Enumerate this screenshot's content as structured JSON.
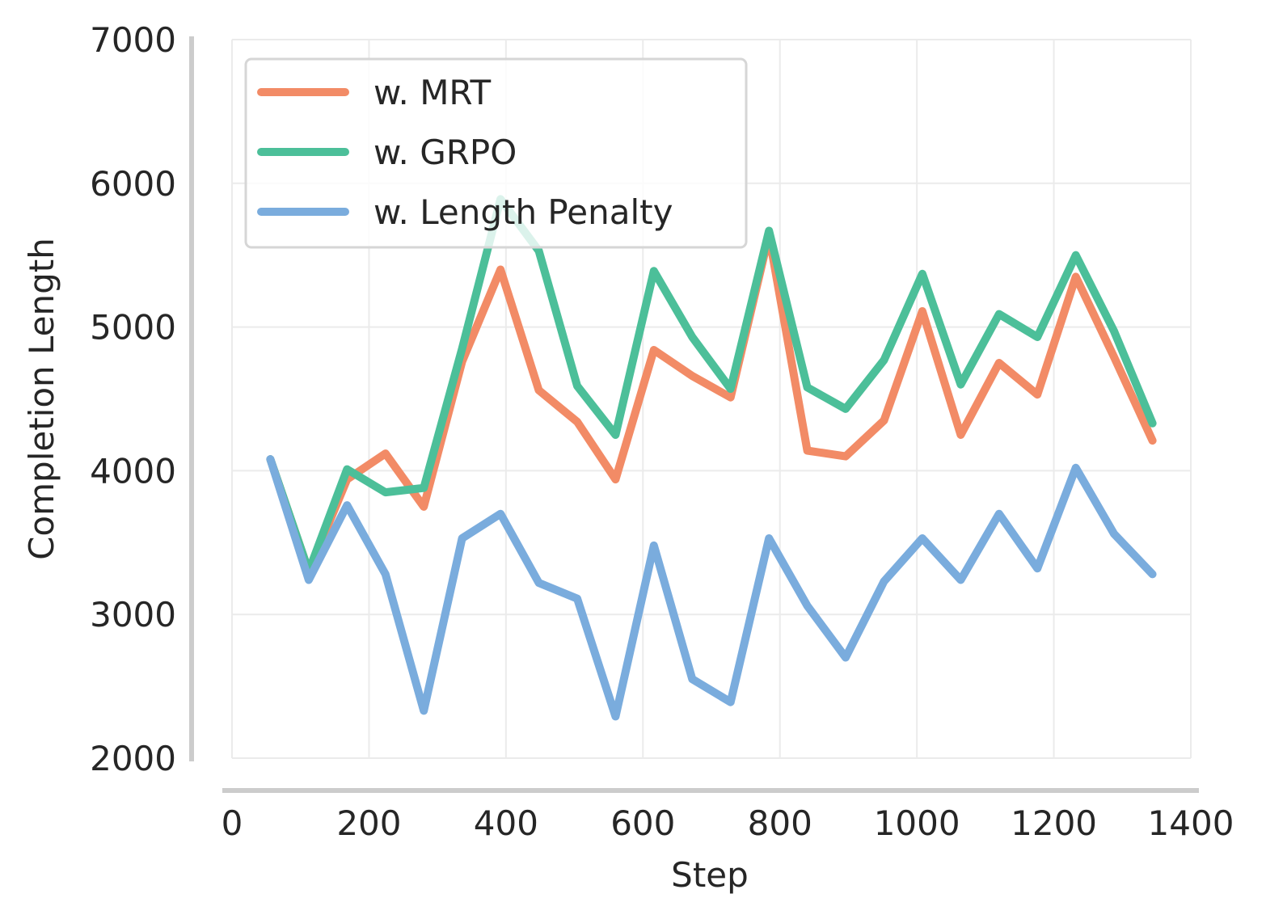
{
  "chart_data": {
    "type": "line",
    "xlabel": "Step",
    "ylabel": "Completion Length",
    "xlim": [
      0,
      1400
    ],
    "ylim": [
      2000,
      7000
    ],
    "xticks": [
      0,
      200,
      400,
      600,
      800,
      1000,
      1200,
      1400
    ],
    "yticks": [
      2000,
      3000,
      4000,
      5000,
      6000,
      7000
    ],
    "grid": true,
    "legend_position": "top-left",
    "x": [
      56,
      112,
      168,
      224,
      280,
      336,
      392,
      448,
      504,
      560,
      616,
      672,
      728,
      784,
      840,
      896,
      952,
      1008,
      1064,
      1120,
      1176,
      1232,
      1288,
      1344
    ],
    "series": [
      {
        "name": "w. MRT",
        "color": "#F28B66",
        "values": [
          4080,
          3300,
          3940,
          4120,
          3750,
          4760,
          5400,
          4560,
          4340,
          3940,
          4840,
          4660,
          4510,
          5640,
          4140,
          4100,
          4350,
          5110,
          4250,
          4750,
          4530,
          5350,
          4790,
          4210
        ]
      },
      {
        "name": "w. GRPO",
        "color": "#4CBF99",
        "values": [
          4080,
          3300,
          4010,
          3850,
          3880,
          4850,
          5890,
          5530,
          4590,
          4250,
          5390,
          4930,
          4570,
          5670,
          4580,
          4430,
          4770,
          5370,
          4600,
          5090,
          4930,
          5500,
          4970,
          4330
        ]
      },
      {
        "name": "w. Length Penalty",
        "color": "#7AACDD",
        "values": [
          4080,
          3240,
          3760,
          3280,
          2330,
          3530,
          3700,
          3220,
          3110,
          2290,
          3480,
          2550,
          2390,
          3530,
          3060,
          2700,
          3230,
          3530,
          3240,
          3700,
          3320,
          4020,
          3560,
          3280
        ]
      }
    ]
  }
}
